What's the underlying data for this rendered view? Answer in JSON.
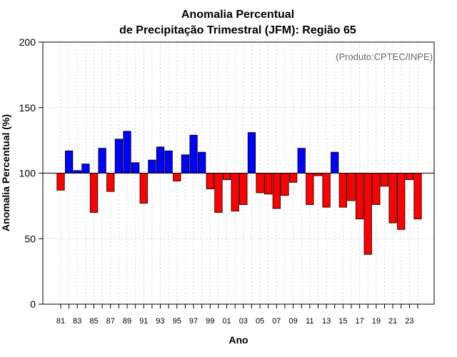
{
  "chart_data": {
    "type": "bar",
    "title_line1": "Anomalia Percentual",
    "title_line2": "de Precipitação Trimestral (JFM): Região 65",
    "xlabel": "Ano",
    "ylabel": "Anomalia Percentual (%)",
    "credit": "(Produto:CPTEC/INPE)",
    "ylim": [
      0,
      200
    ],
    "baseline": 100,
    "yticks": [
      0,
      50,
      100,
      150,
      200
    ],
    "grid": true,
    "colors": {
      "above": "#0000ff",
      "below": "#ff0000",
      "edge": "#000000",
      "grid": "#d3d3d3"
    },
    "categories": [
      "81",
      "82",
      "83",
      "84",
      "85",
      "86",
      "87",
      "88",
      "89",
      "90",
      "91",
      "92",
      "93",
      "94",
      "95",
      "96",
      "97",
      "98",
      "99",
      "00",
      "01",
      "02",
      "03",
      "04",
      "05",
      "06",
      "07",
      "08",
      "09",
      "10",
      "11",
      "12",
      "13",
      "14",
      "15",
      "16",
      "17",
      "18",
      "19",
      "20",
      "21",
      "22",
      "23",
      "24"
    ],
    "xtick_labels": [
      "81",
      "83",
      "85",
      "87",
      "89",
      "91",
      "93",
      "95",
      "97",
      "99",
      "01",
      "03",
      "05",
      "07",
      "09",
      "11",
      "13",
      "15",
      "17",
      "19",
      "21",
      "23"
    ],
    "values": [
      87,
      117,
      102,
      107,
      70,
      119,
      86,
      126,
      132,
      108,
      77,
      110,
      120,
      117,
      94,
      114,
      129,
      116,
      88,
      70,
      95,
      71,
      76,
      131,
      85,
      84,
      73,
      83,
      93,
      119,
      76,
      98,
      74,
      116,
      74,
      79,
      65,
      38,
      76,
      90,
      62,
      57,
      95,
      65
    ]
  }
}
